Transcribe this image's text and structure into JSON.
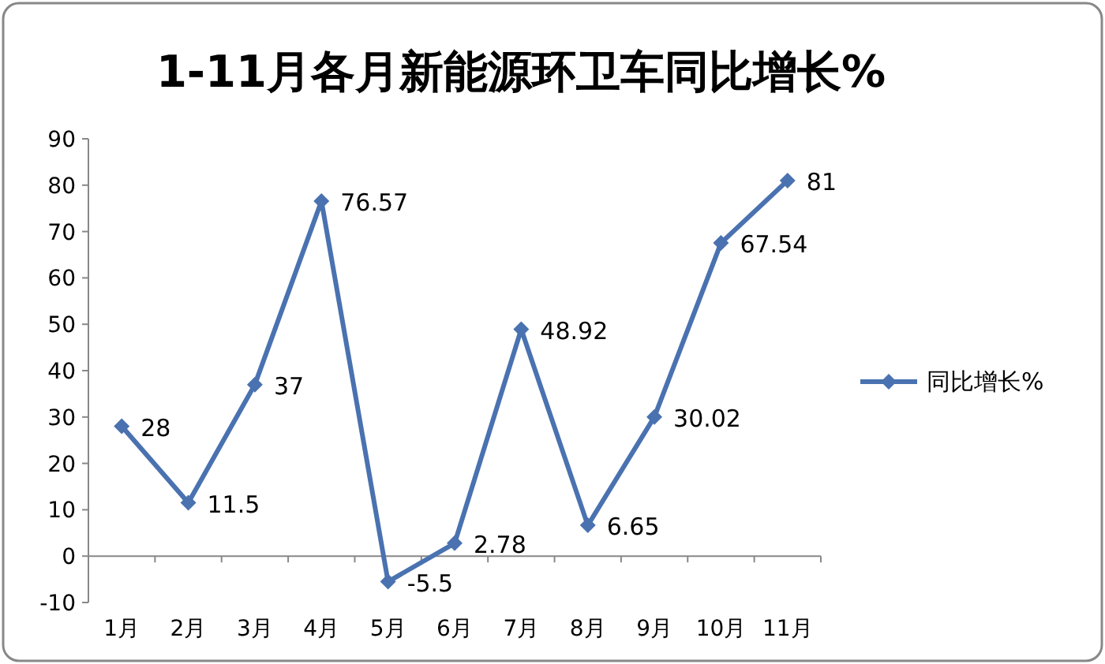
{
  "chart_data": {
    "type": "line",
    "title": "1-11月各月新能源环卫车同比增长%",
    "categories": [
      "1月",
      "2月",
      "3月",
      "4月",
      "5月",
      "6月",
      "7月",
      "8月",
      "9月",
      "10月",
      "11月"
    ],
    "series": [
      {
        "name": "同比增长%",
        "color": "#4a72b0",
        "values": [
          28,
          11.5,
          37,
          76.57,
          -5.5,
          2.78,
          48.92,
          6.65,
          30.02,
          67.54,
          81
        ]
      }
    ],
    "ylim": [
      -10,
      90
    ],
    "yticks": [
      -10,
      0,
      10,
      20,
      30,
      40,
      50,
      60,
      70,
      80,
      90
    ],
    "marker": "diamond",
    "legend": "right",
    "data_labels": true
  }
}
